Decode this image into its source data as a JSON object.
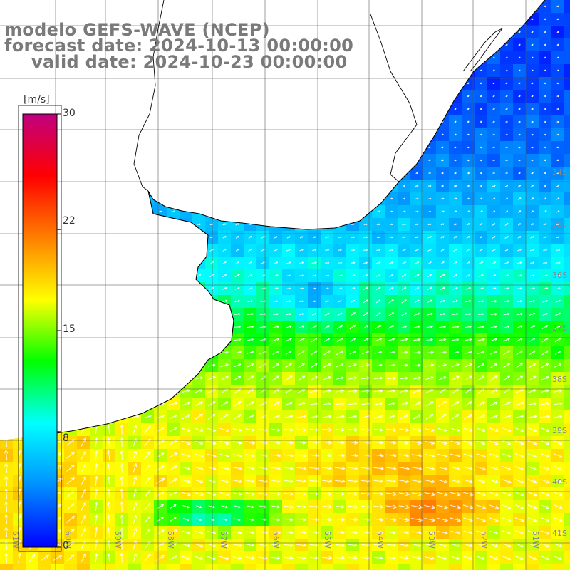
{
  "title": {
    "line1": "modelo GEFS-WAVE (NCEP)",
    "line2": "forecast date: 2024-10-13 00:00:00",
    "line3": "valid date: 2024-10-23 00:00:00"
  },
  "colorbar": {
    "unit": "[m/s]",
    "ticks": [
      "30",
      "22",
      "15",
      "8",
      "0"
    ],
    "tick_values": [
      30,
      22,
      15,
      8,
      0
    ],
    "min": 0,
    "max": 30,
    "colors": [
      "#0000ff",
      "#0090ff",
      "#00ffff",
      "#00ff00",
      "#ffff00",
      "#ff8000",
      "#ff0000",
      "#c00080"
    ]
  },
  "lat_labels": [
    "34S",
    "35S",
    "36S",
    "37S",
    "38S",
    "39S",
    "40S",
    "41S"
  ],
  "lon_labels": [
    "61W",
    "60W",
    "59W",
    "58W",
    "57W",
    "56W",
    "55W",
    "54W",
    "53W",
    "52W",
    "51W"
  ],
  "colors": {
    "land": "#ffffff",
    "coastline": "#000000",
    "grid": "#555555",
    "title": "#7a7a7a",
    "arrows": "#ffffff"
  }
}
